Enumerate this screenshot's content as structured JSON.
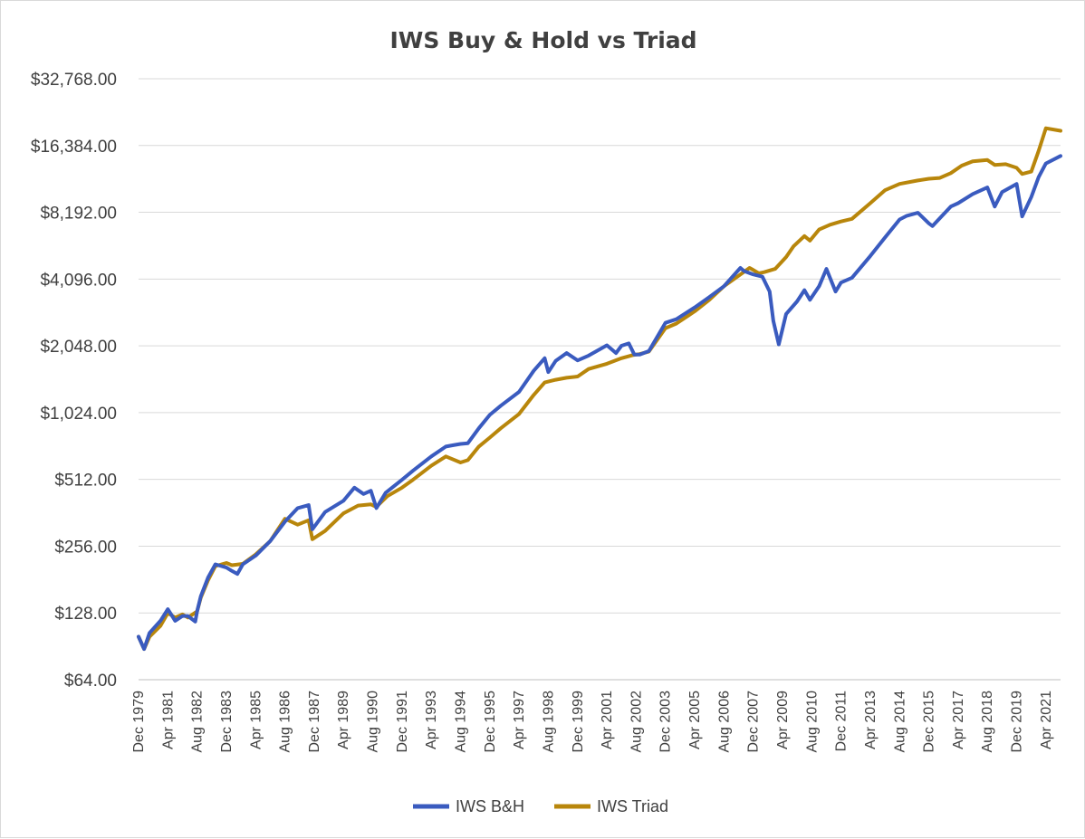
{
  "chart_data": {
    "type": "line",
    "title": "IWS Buy & Hold vs Triad",
    "y_scale": "log2",
    "ylim": [
      64,
      32768
    ],
    "y_ticks": [
      {
        "value": 64,
        "label": "$64.00"
      },
      {
        "value": 128,
        "label": "$128.00"
      },
      {
        "value": 256,
        "label": "$256.00"
      },
      {
        "value": 512,
        "label": "$512.00"
      },
      {
        "value": 1024,
        "label": "$1,024.00"
      },
      {
        "value": 2048,
        "label": "$2,048.00"
      },
      {
        "value": 4096,
        "label": "$4,096.00"
      },
      {
        "value": 8192,
        "label": "$8,192.00"
      },
      {
        "value": 16384,
        "label": "$16,384.00"
      },
      {
        "value": 32768,
        "label": "$32,768.00"
      }
    ],
    "x_range": [
      "1979-12",
      "2021-12"
    ],
    "x_ticks": [
      {
        "date": "1979-12",
        "label": "Dec 1979"
      },
      {
        "date": "1981-04",
        "label": "Apr 1981"
      },
      {
        "date": "1982-08",
        "label": "Aug 1982"
      },
      {
        "date": "1983-12",
        "label": "Dec 1983"
      },
      {
        "date": "1985-04",
        "label": "Apr 1985"
      },
      {
        "date": "1986-08",
        "label": "Aug 1986"
      },
      {
        "date": "1987-12",
        "label": "Dec 1987"
      },
      {
        "date": "1989-04",
        "label": "Apr 1989"
      },
      {
        "date": "1990-08",
        "label": "Aug 1990"
      },
      {
        "date": "1991-12",
        "label": "Dec 1991"
      },
      {
        "date": "1993-04",
        "label": "Apr 1993"
      },
      {
        "date": "1994-08",
        "label": "Aug 1994"
      },
      {
        "date": "1995-12",
        "label": "Dec 1995"
      },
      {
        "date": "1997-04",
        "label": "Apr 1997"
      },
      {
        "date": "1998-08",
        "label": "Aug 1998"
      },
      {
        "date": "1999-12",
        "label": "Dec 1999"
      },
      {
        "date": "2001-04",
        "label": "Apr 2001"
      },
      {
        "date": "2002-08",
        "label": "Aug 2002"
      },
      {
        "date": "2003-12",
        "label": "Dec 2003"
      },
      {
        "date": "2005-04",
        "label": "Apr 2005"
      },
      {
        "date": "2006-08",
        "label": "Aug 2006"
      },
      {
        "date": "2007-12",
        "label": "Dec 2007"
      },
      {
        "date": "2009-04",
        "label": "Apr 2009"
      },
      {
        "date": "2010-08",
        "label": "Aug 2010"
      },
      {
        "date": "2011-12",
        "label": "Dec 2011"
      },
      {
        "date": "2013-04",
        "label": "Apr 2013"
      },
      {
        "date": "2014-08",
        "label": "Aug 2014"
      },
      {
        "date": "2015-12",
        "label": "Dec 2015"
      },
      {
        "date": "2017-04",
        "label": "Apr 2017"
      },
      {
        "date": "2018-08",
        "label": "Aug 2018"
      },
      {
        "date": "2019-12",
        "label": "Dec 2019"
      },
      {
        "date": "2021-04",
        "label": "Apr 2021"
      }
    ],
    "grid": "horizontal",
    "legend_position": "bottom",
    "series": [
      {
        "name": "IWS B&H",
        "color": "#3A5BBF",
        "points": [
          [
            "1979-12",
            100
          ],
          [
            "1980-03",
            88
          ],
          [
            "1980-06",
            104
          ],
          [
            "1980-12",
            118
          ],
          [
            "1981-04",
            133
          ],
          [
            "1981-08",
            118
          ],
          [
            "1981-12",
            124
          ],
          [
            "1982-03",
            124
          ],
          [
            "1982-07",
            117
          ],
          [
            "1982-08",
            130
          ],
          [
            "1982-10",
            152
          ],
          [
            "1983-02",
            185
          ],
          [
            "1983-06",
            212
          ],
          [
            "1983-12",
            205
          ],
          [
            "1984-03",
            198
          ],
          [
            "1984-06",
            192
          ],
          [
            "1984-09",
            212
          ],
          [
            "1985-04",
            232
          ],
          [
            "1985-12",
            270
          ],
          [
            "1986-08",
            330
          ],
          [
            "1987-03",
            380
          ],
          [
            "1987-09",
            392
          ],
          [
            "1987-11",
            305
          ],
          [
            "1988-06",
            365
          ],
          [
            "1989-04",
            410
          ],
          [
            "1989-10",
            470
          ],
          [
            "1990-03",
            440
          ],
          [
            "1990-07",
            455
          ],
          [
            "1990-10",
            380
          ],
          [
            "1991-03",
            445
          ],
          [
            "1991-12",
            510
          ],
          [
            "1992-06",
            560
          ],
          [
            "1993-04",
            650
          ],
          [
            "1993-12",
            720
          ],
          [
            "1994-04",
            730
          ],
          [
            "1994-08",
            740
          ],
          [
            "1994-12",
            745
          ],
          [
            "1995-06",
            870
          ],
          [
            "1995-12",
            1000
          ],
          [
            "1996-06",
            1100
          ],
          [
            "1997-04",
            1270
          ],
          [
            "1997-12",
            1580
          ],
          [
            "1998-06",
            1800
          ],
          [
            "1998-08",
            1560
          ],
          [
            "1998-12",
            1750
          ],
          [
            "1999-06",
            1900
          ],
          [
            "1999-12",
            1760
          ],
          [
            "2000-06",
            1850
          ],
          [
            "2001-04",
            2060
          ],
          [
            "2001-09",
            1900
          ],
          [
            "2001-12",
            2050
          ],
          [
            "2002-04",
            2100
          ],
          [
            "2002-07",
            1870
          ],
          [
            "2002-10",
            1870
          ],
          [
            "2003-03",
            1940
          ],
          [
            "2003-12",
            2600
          ],
          [
            "2004-06",
            2700
          ],
          [
            "2005-04",
            3050
          ],
          [
            "2005-12",
            3400
          ],
          [
            "2006-08",
            3800
          ],
          [
            "2007-05",
            4600
          ],
          [
            "2007-07",
            4450
          ],
          [
            "2007-12",
            4300
          ],
          [
            "2008-05",
            4200
          ],
          [
            "2008-09",
            3600
          ],
          [
            "2008-11",
            2650
          ],
          [
            "2009-02",
            2080
          ],
          [
            "2009-06",
            2850
          ],
          [
            "2009-12",
            3250
          ],
          [
            "2010-04",
            3650
          ],
          [
            "2010-07",
            3300
          ],
          [
            "2010-12",
            3800
          ],
          [
            "2011-04",
            4550
          ],
          [
            "2011-09",
            3600
          ],
          [
            "2011-12",
            3950
          ],
          [
            "2012-06",
            4150
          ],
          [
            "2013-04",
            5200
          ],
          [
            "2013-12",
            6300
          ],
          [
            "2014-08",
            7600
          ],
          [
            "2014-12",
            7900
          ],
          [
            "2015-06",
            8150
          ],
          [
            "2015-12",
            7300
          ],
          [
            "2016-02",
            7100
          ],
          [
            "2016-12",
            8700
          ],
          [
            "2017-04",
            9000
          ],
          [
            "2017-12",
            9900
          ],
          [
            "2018-08",
            10600
          ],
          [
            "2018-12",
            8700
          ],
          [
            "2019-04",
            10100
          ],
          [
            "2019-12",
            11000
          ],
          [
            "2020-03",
            7850
          ],
          [
            "2020-08",
            9600
          ],
          [
            "2020-12",
            11800
          ],
          [
            "2021-04",
            13600
          ],
          [
            "2021-12",
            14700
          ]
        ]
      },
      {
        "name": "IWS Triad",
        "color": "#B8860B",
        "points": [
          [
            "1979-12",
            100
          ],
          [
            "1980-03",
            88
          ],
          [
            "1980-06",
            100
          ],
          [
            "1980-12",
            112
          ],
          [
            "1981-04",
            128
          ],
          [
            "1981-08",
            122
          ],
          [
            "1981-12",
            126
          ],
          [
            "1982-03",
            122
          ],
          [
            "1982-08",
            130
          ],
          [
            "1982-10",
            150
          ],
          [
            "1983-02",
            180
          ],
          [
            "1983-06",
            208
          ],
          [
            "1983-12",
            215
          ],
          [
            "1984-03",
            210
          ],
          [
            "1984-09",
            213
          ],
          [
            "1985-04",
            235
          ],
          [
            "1985-12",
            270
          ],
          [
            "1986-08",
            340
          ],
          [
            "1987-03",
            320
          ],
          [
            "1987-09",
            335
          ],
          [
            "1987-11",
            275
          ],
          [
            "1988-06",
            300
          ],
          [
            "1989-04",
            360
          ],
          [
            "1989-12",
            390
          ],
          [
            "1990-07",
            395
          ],
          [
            "1990-10",
            385
          ],
          [
            "1991-04",
            430
          ],
          [
            "1991-12",
            470
          ],
          [
            "1992-06",
            510
          ],
          [
            "1993-04",
            590
          ],
          [
            "1993-12",
            650
          ],
          [
            "1994-08",
            610
          ],
          [
            "1994-12",
            625
          ],
          [
            "1995-06",
            720
          ],
          [
            "1995-12",
            790
          ],
          [
            "1996-06",
            870
          ],
          [
            "1997-04",
            1010
          ],
          [
            "1997-12",
            1230
          ],
          [
            "1998-06",
            1400
          ],
          [
            "1998-12",
            1440
          ],
          [
            "1999-06",
            1470
          ],
          [
            "1999-12",
            1490
          ],
          [
            "2000-06",
            1610
          ],
          [
            "2001-04",
            1700
          ],
          [
            "2001-12",
            1800
          ],
          [
            "2002-06",
            1860
          ],
          [
            "2002-10",
            1880
          ],
          [
            "2003-03",
            1930
          ],
          [
            "2003-12",
            2460
          ],
          [
            "2004-06",
            2580
          ],
          [
            "2005-04",
            2930
          ],
          [
            "2005-12",
            3300
          ],
          [
            "2006-08",
            3800
          ],
          [
            "2007-05",
            4300
          ],
          [
            "2007-10",
            4600
          ],
          [
            "2007-12",
            4500
          ],
          [
            "2008-03",
            4350
          ],
          [
            "2008-06",
            4400
          ],
          [
            "2008-12",
            4550
          ],
          [
            "2009-06",
            5150
          ],
          [
            "2009-10",
            5750
          ],
          [
            "2010-04",
            6400
          ],
          [
            "2010-07",
            6100
          ],
          [
            "2010-12",
            6850
          ],
          [
            "2011-06",
            7200
          ],
          [
            "2011-12",
            7450
          ],
          [
            "2012-06",
            7650
          ],
          [
            "2013-04",
            9000
          ],
          [
            "2013-12",
            10300
          ],
          [
            "2014-08",
            11000
          ],
          [
            "2015-06",
            11400
          ],
          [
            "2015-12",
            11600
          ],
          [
            "2016-06",
            11700
          ],
          [
            "2016-12",
            12300
          ],
          [
            "2017-06",
            13300
          ],
          [
            "2017-12",
            13900
          ],
          [
            "2018-08",
            14100
          ],
          [
            "2018-12",
            13400
          ],
          [
            "2019-06",
            13500
          ],
          [
            "2019-12",
            13000
          ],
          [
            "2020-03",
            12200
          ],
          [
            "2020-08",
            12500
          ],
          [
            "2020-12",
            15500
          ],
          [
            "2021-04",
            19600
          ],
          [
            "2021-12",
            19100
          ]
        ]
      }
    ]
  }
}
